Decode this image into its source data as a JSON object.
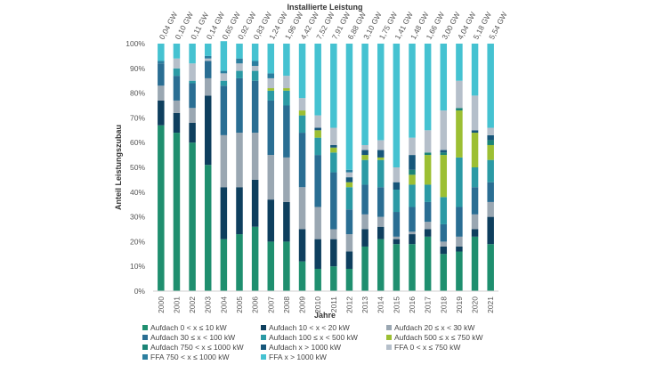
{
  "chart_data": {
    "type": "bar",
    "stacked": true,
    "top_axis_title": "Installierte Leistung",
    "xlabel": "Jahre",
    "ylabel": "Anteil Leistungszubau",
    "ylim": [
      0,
      100
    ],
    "y_ticks": [
      "0%",
      "10%",
      "20%",
      "30%",
      "40%",
      "50%",
      "60%",
      "70%",
      "80%",
      "90%",
      "100%"
    ],
    "grid": false,
    "legend_position": "bottom",
    "categories": [
      "2000",
      "2001",
      "2002",
      "2003",
      "2004",
      "2005",
      "2006",
      "2007",
      "2008",
      "2009",
      "2010",
      "2011",
      "2012",
      "2013",
      "2014",
      "2015",
      "2016",
      "2017",
      "2018",
      "2019",
      "2020",
      "2021"
    ],
    "installed_capacity": [
      "0,04 GW",
      "0,10 GW",
      "0,11 GW",
      "0,14 GW",
      "0,65 GW",
      "0,92 GW",
      "0,83 GW",
      "1,24 GW",
      "1,96 GW",
      "4,42 GW",
      "7,52 GW",
      "7,91 GW",
      "6,88 GW",
      "3,10 GW",
      "1,75 GW",
      "1,41 GW",
      "1,48 GW",
      "1,66 GW",
      "3,00 GW",
      "4,04 GW",
      "5,18 GW",
      "5,54 GW"
    ],
    "series": [
      {
        "name": "Aufdach 0 < x ≤ 10 kW",
        "color": "#1f8f6f",
        "values": [
          67,
          64,
          60,
          51,
          21,
          23,
          26,
          20,
          20,
          12,
          9,
          10,
          9,
          18,
          21,
          19,
          19,
          22,
          15,
          16,
          22,
          19
        ]
      },
      {
        "name": "Aufdach 10 < x < 20 kW",
        "color": "#0e3f5e",
        "values": [
          10,
          8,
          8,
          28,
          21,
          19,
          19,
          17,
          16,
          13,
          12,
          11,
          7,
          7,
          5,
          2,
          4,
          3,
          3,
          2,
          3,
          11
        ]
      },
      {
        "name": "Aufdach 20 ≤ x < 30 kW",
        "color": "#9aa7b2",
        "values": [
          6,
          5,
          6,
          7,
          21,
          22,
          19,
          18,
          18,
          17,
          13,
          4,
          7,
          6,
          4,
          1,
          1,
          3,
          2,
          4,
          6,
          6
        ]
      },
      {
        "name": "Aufdach 30 ≤ x < 100 kW",
        "color": "#2a6e93",
        "values": [
          9,
          10,
          10,
          7,
          20,
          22,
          21,
          22,
          21,
          22,
          21,
          23,
          10,
          12,
          12,
          10,
          10,
          8,
          7,
          12,
          11,
          8
        ]
      },
      {
        "name": "Aufdach 100 ≤ x < 500 kW",
        "color": "#2b9aa5",
        "values": [
          0,
          3,
          1,
          0,
          2,
          3,
          4,
          4,
          6,
          7,
          7,
          8,
          9,
          10,
          11,
          9,
          9,
          7,
          11,
          20,
          8,
          9
        ]
      },
      {
        "name": "Aufdach 500 ≤ x ≤ 750 kW",
        "color": "#9cbf33",
        "values": [
          0,
          0,
          0,
          0,
          0,
          0,
          0,
          1,
          1,
          2,
          3,
          2,
          2,
          2,
          1,
          0,
          4,
          12,
          17,
          19,
          14,
          6
        ]
      },
      {
        "name": "Aufdach 750 < x ≤ 1000 kW",
        "color": "#1b8476",
        "values": [
          0,
          0,
          0,
          0,
          0,
          0,
          0,
          0,
          0,
          0,
          0,
          0,
          0,
          0,
          0,
          0,
          2,
          1,
          1,
          1,
          0,
          2
        ]
      },
      {
        "name": "Aufdach x > 1000 kW",
        "color": "#16567a",
        "values": [
          0,
          0,
          0,
          0,
          0,
          0,
          0,
          0,
          0,
          0,
          1,
          1,
          2,
          2,
          3,
          3,
          6,
          0,
          1,
          0,
          1,
          2
        ]
      },
      {
        "name": "FFA 0 < x ≤ 750 kW",
        "color": "#b5bfca",
        "values": [
          0,
          4,
          7,
          1,
          3,
          3,
          2,
          4,
          5,
          5,
          5,
          7,
          2,
          2,
          4,
          6,
          7,
          9,
          16,
          11,
          14,
          3
        ]
      },
      {
        "name": "FFA 750 < x ≤ 1000 kW",
        "color": "#2b7e9f",
        "values": [
          1,
          0,
          0,
          1,
          1,
          2,
          2,
          2,
          0,
          0,
          0,
          0,
          1,
          0,
          0,
          0,
          0,
          0,
          0,
          0,
          0,
          0
        ]
      },
      {
        "name": "FFA x > 1000 kW",
        "color": "#45c2d1",
        "values": [
          7,
          6,
          8,
          5,
          12,
          6,
          7,
          12,
          13,
          22,
          29,
          34,
          51,
          41,
          39,
          50,
          38,
          35,
          27,
          15,
          21,
          34
        ]
      }
    ]
  }
}
